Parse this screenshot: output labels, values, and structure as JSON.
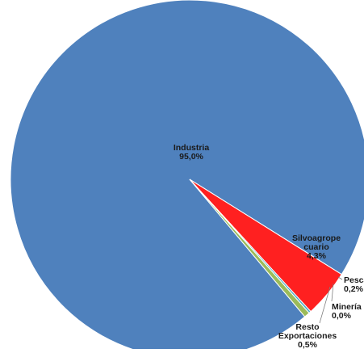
{
  "chart_data": {
    "type": "pie",
    "slices": [
      {
        "label": "Industria",
        "value": 95.0,
        "value_text": "95,0%",
        "label_lines": [
          "Industria"
        ],
        "color": "#4f81bd"
      },
      {
        "label": "Silvoagropecuario",
        "value": 4.3,
        "value_text": "4,3%",
        "label_lines": [
          "Silvoagrope",
          "cuario"
        ],
        "color": "#ff2020"
      },
      {
        "label": "Pesca",
        "value": 0.2,
        "value_text": "0,2%",
        "label_lines": [
          "Pesca"
        ],
        "color": "#4bacc6"
      },
      {
        "label": "Minería",
        "value": 0.0,
        "value_text": "0,0%",
        "label_lines": [
          "Minería"
        ],
        "color": "#8064a2"
      },
      {
        "label": "Resto Exportaciones",
        "value": 0.5,
        "value_text": "0,5%",
        "label_lines": [
          "Resto",
          "Exportaciones"
        ],
        "color": "#9bbb59"
      }
    ]
  }
}
